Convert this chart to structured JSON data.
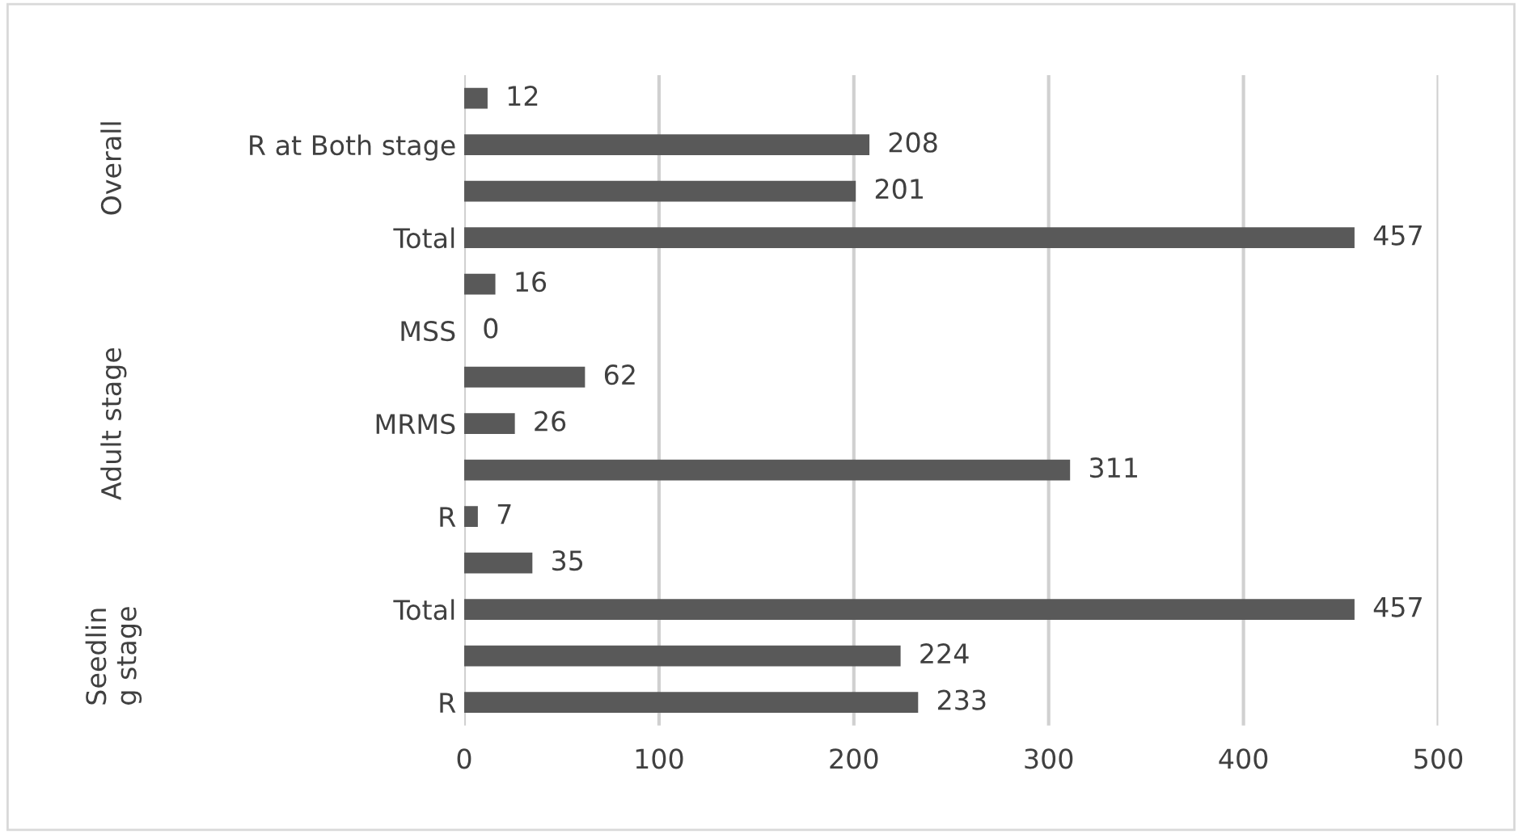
{
  "chart_data": {
    "type": "bar",
    "orientation": "horizontal",
    "categories": [
      null,
      "R at Both stage",
      null,
      "Total",
      null,
      "MSS",
      null,
      "MRMS",
      null,
      "R",
      null,
      "Total",
      null,
      "R"
    ],
    "values": [
      12,
      208,
      201,
      457,
      16,
      0,
      62,
      26,
      311,
      7,
      35,
      457,
      224,
      233
    ],
    "color": "#595959",
    "xlim": [
      0,
      500
    ],
    "xticks": [
      0,
      100,
      200,
      300,
      400,
      500
    ],
    "grid": "x",
    "data_labels": true,
    "annotations": [
      "Overall",
      "Adult stage",
      "Seedlin\ng stage"
    ]
  }
}
